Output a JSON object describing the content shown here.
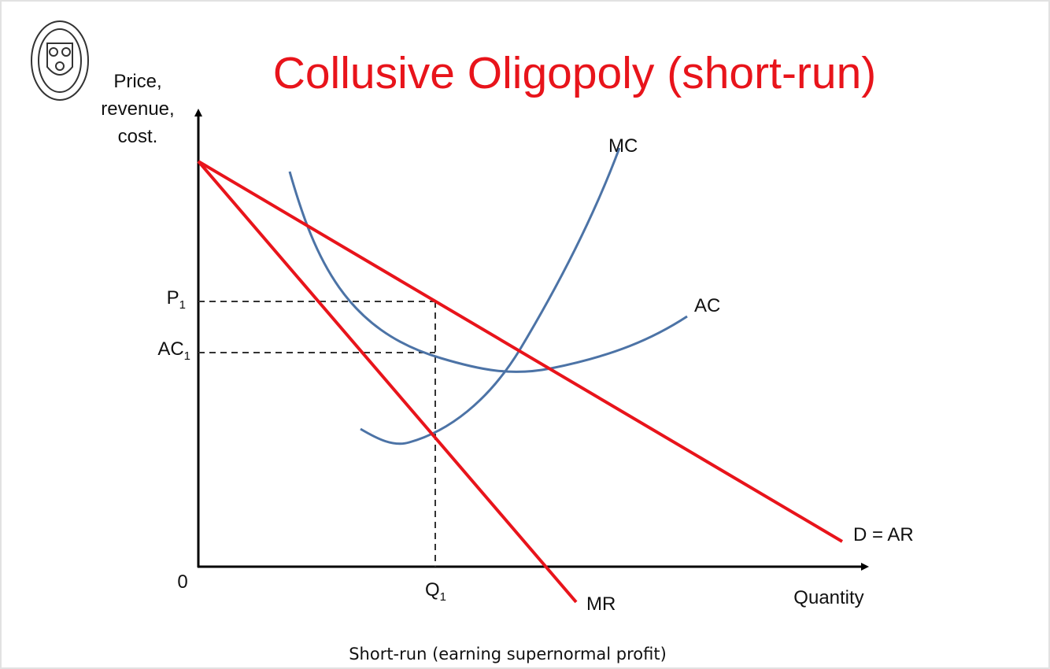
{
  "title": "Collusive Oligopoly (short-run)",
  "y_axis_label": [
    "Price,",
    "revenue,",
    "cost."
  ],
  "x_axis_label": "Quantity",
  "origin_label": "0",
  "price_label": {
    "text": "P",
    "subscript": "1"
  },
  "average_cost_label": {
    "text": "AC",
    "subscript": "1"
  },
  "quantity_label": {
    "text": "Q",
    "subscript": "1"
  },
  "curves": {
    "mc": "MC",
    "ac": "AC",
    "demand": "D = AR",
    "mr": "MR"
  },
  "caption": "Short-run (earning supernormal profit)"
}
